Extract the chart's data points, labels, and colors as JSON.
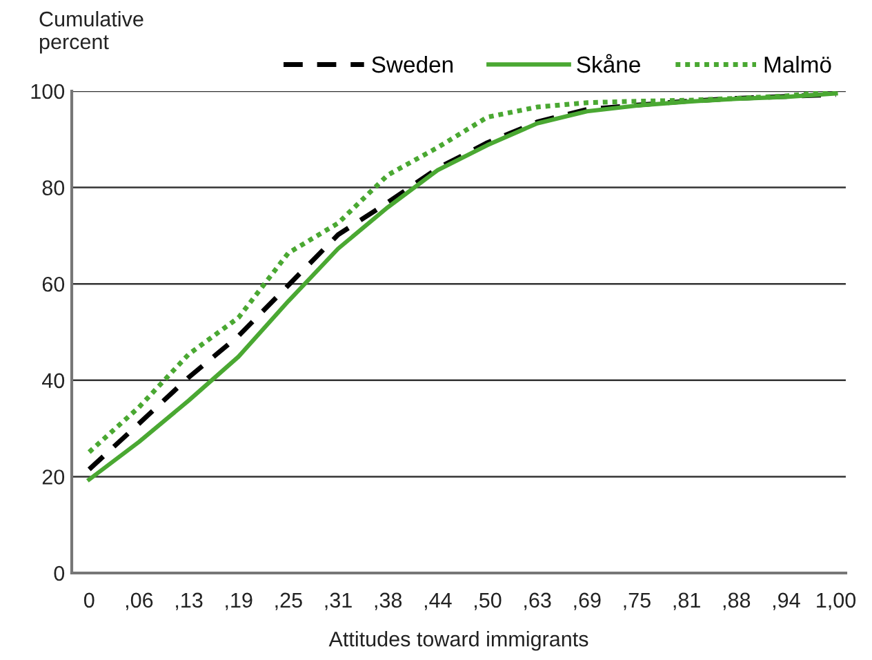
{
  "chart_data": {
    "type": "line",
    "ylabel": "Cumulative\npercent",
    "xlabel": "Attitudes toward immigrants",
    "categories": [
      "0",
      ",06",
      ",13",
      ",19",
      ",25",
      ",31",
      ",38",
      ",44",
      ",50",
      ",63",
      ",69",
      ",75",
      ",81",
      ",88",
      ",94",
      "1,00"
    ],
    "series": [
      {
        "name": "Sweden",
        "color": "#000000",
        "line_style": "dashed",
        "values": [
          21.5,
          31,
          40.6,
          49.2,
          59.7,
          70.2,
          76.9,
          84,
          89.3,
          93.6,
          96.2,
          97.1,
          97.9,
          98.5,
          98.9,
          99.3
        ]
      },
      {
        "name": "Skåne",
        "color": "#4aa832",
        "line_style": "solid",
        "values": [
          19.4,
          27.2,
          35.8,
          44.9,
          56.4,
          67.3,
          75.9,
          83.6,
          88.8,
          93.3,
          95.8,
          97,
          97.8,
          98.4,
          98.8,
          99.5
        ]
      },
      {
        "name": "Malmö",
        "color": "#4aa832",
        "line_style": "dotted",
        "values": [
          25.1,
          34.4,
          45.4,
          53,
          66.4,
          72.6,
          82.6,
          88.3,
          94.6,
          96.7,
          97.6,
          97.9,
          98.1,
          98.5,
          99,
          100
        ]
      }
    ],
    "ylim": [
      0,
      100
    ],
    "yticks": [
      0,
      20,
      40,
      60,
      80,
      100
    ],
    "grid": "y",
    "legend": "top right",
    "marker": "none"
  }
}
